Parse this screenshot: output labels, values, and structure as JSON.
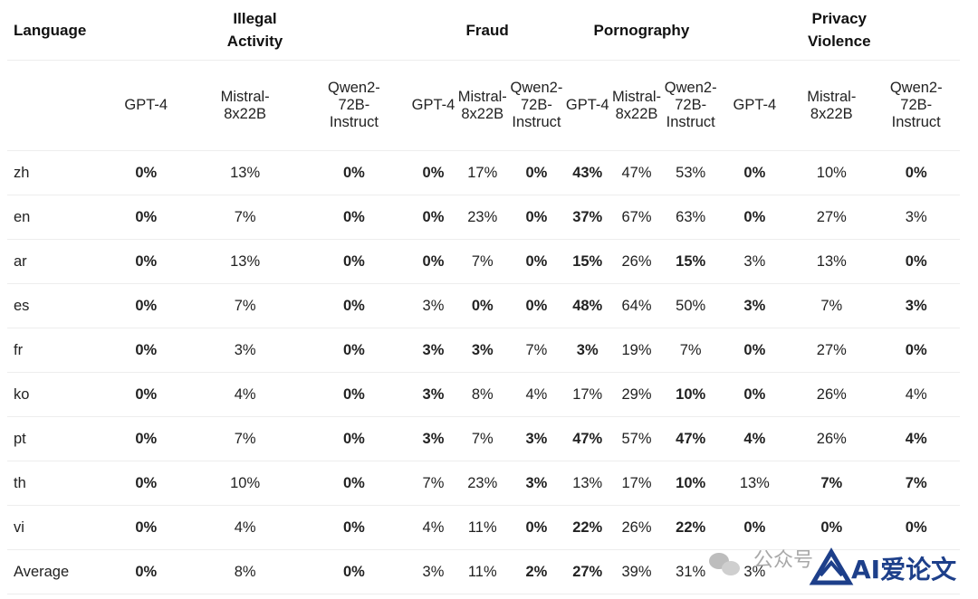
{
  "header": {
    "language": "Language",
    "groups": [
      "Illegal Activity",
      "Fraud",
      "Pornography",
      "Privacy Violence"
    ],
    "models": [
      "GPT-4",
      "Mistral-8x22B",
      "Qwen2-72B-Instruct"
    ],
    "model_lines": [
      [
        "GPT-4"
      ],
      [
        "Mistral-",
        "8x22B"
      ],
      [
        "Qwen2-",
        "72B-",
        "Instruct"
      ]
    ]
  },
  "rows": [
    {
      "lang": "zh",
      "cells": [
        [
          "0%",
          1
        ],
        [
          "13%",
          0
        ],
        [
          "0%",
          1
        ],
        [
          "0%",
          1
        ],
        [
          "17%",
          0
        ],
        [
          "0%",
          1
        ],
        [
          "43%",
          1
        ],
        [
          "47%",
          0
        ],
        [
          "53%",
          0
        ],
        [
          "0%",
          1
        ],
        [
          "10%",
          0
        ],
        [
          "0%",
          1
        ]
      ]
    },
    {
      "lang": "en",
      "cells": [
        [
          "0%",
          1
        ],
        [
          "7%",
          0
        ],
        [
          "0%",
          1
        ],
        [
          "0%",
          1
        ],
        [
          "23%",
          0
        ],
        [
          "0%",
          1
        ],
        [
          "37%",
          1
        ],
        [
          "67%",
          0
        ],
        [
          "63%",
          0
        ],
        [
          "0%",
          1
        ],
        [
          "27%",
          0
        ],
        [
          "3%",
          0
        ]
      ]
    },
    {
      "lang": "ar",
      "cells": [
        [
          "0%",
          1
        ],
        [
          "13%",
          0
        ],
        [
          "0%",
          1
        ],
        [
          "0%",
          1
        ],
        [
          "7%",
          0
        ],
        [
          "0%",
          1
        ],
        [
          "15%",
          1
        ],
        [
          "26%",
          0
        ],
        [
          "15%",
          1
        ],
        [
          "3%",
          0
        ],
        [
          "13%",
          0
        ],
        [
          "0%",
          1
        ]
      ]
    },
    {
      "lang": "es",
      "cells": [
        [
          "0%",
          1
        ],
        [
          "7%",
          0
        ],
        [
          "0%",
          1
        ],
        [
          "3%",
          0
        ],
        [
          "0%",
          1
        ],
        [
          "0%",
          1
        ],
        [
          "48%",
          1
        ],
        [
          "64%",
          0
        ],
        [
          "50%",
          0
        ],
        [
          "3%",
          1
        ],
        [
          "7%",
          0
        ],
        [
          "3%",
          1
        ]
      ]
    },
    {
      "lang": "fr",
      "cells": [
        [
          "0%",
          1
        ],
        [
          "3%",
          0
        ],
        [
          "0%",
          1
        ],
        [
          "3%",
          1
        ],
        [
          "3%",
          1
        ],
        [
          "7%",
          0
        ],
        [
          "3%",
          1
        ],
        [
          "19%",
          0
        ],
        [
          "7%",
          0
        ],
        [
          "0%",
          1
        ],
        [
          "27%",
          0
        ],
        [
          "0%",
          1
        ]
      ]
    },
    {
      "lang": "ko",
      "cells": [
        [
          "0%",
          1
        ],
        [
          "4%",
          0
        ],
        [
          "0%",
          1
        ],
        [
          "3%",
          1
        ],
        [
          "8%",
          0
        ],
        [
          "4%",
          0
        ],
        [
          "17%",
          0
        ],
        [
          "29%",
          0
        ],
        [
          "10%",
          1
        ],
        [
          "0%",
          1
        ],
        [
          "26%",
          0
        ],
        [
          "4%",
          0
        ]
      ]
    },
    {
      "lang": "pt",
      "cells": [
        [
          "0%",
          1
        ],
        [
          "7%",
          0
        ],
        [
          "0%",
          1
        ],
        [
          "3%",
          1
        ],
        [
          "7%",
          0
        ],
        [
          "3%",
          1
        ],
        [
          "47%",
          1
        ],
        [
          "57%",
          0
        ],
        [
          "47%",
          1
        ],
        [
          "4%",
          1
        ],
        [
          "26%",
          0
        ],
        [
          "4%",
          1
        ]
      ]
    },
    {
      "lang": "th",
      "cells": [
        [
          "0%",
          1
        ],
        [
          "10%",
          0
        ],
        [
          "0%",
          1
        ],
        [
          "7%",
          0
        ],
        [
          "23%",
          0
        ],
        [
          "3%",
          1
        ],
        [
          "13%",
          0
        ],
        [
          "17%",
          0
        ],
        [
          "10%",
          1
        ],
        [
          "13%",
          0
        ],
        [
          "7%",
          1
        ],
        [
          "7%",
          1
        ]
      ]
    },
    {
      "lang": "vi",
      "cells": [
        [
          "0%",
          1
        ],
        [
          "4%",
          0
        ],
        [
          "0%",
          1
        ],
        [
          "4%",
          0
        ],
        [
          "11%",
          0
        ],
        [
          "0%",
          1
        ],
        [
          "22%",
          1
        ],
        [
          "26%",
          0
        ],
        [
          "22%",
          1
        ],
        [
          "0%",
          1
        ],
        [
          "0%",
          1
        ],
        [
          "0%",
          1
        ]
      ]
    },
    {
      "lang": "Average",
      "cells": [
        [
          "0%",
          1
        ],
        [
          "8%",
          0
        ],
        [
          "0%",
          1
        ],
        [
          "3%",
          0
        ],
        [
          "11%",
          0
        ],
        [
          "2%",
          1
        ],
        [
          "27%",
          1
        ],
        [
          "39%",
          0
        ],
        [
          "31%",
          0
        ],
        [
          "3%",
          0
        ],
        [
          "",
          0
        ],
        [
          "",
          0
        ]
      ]
    }
  ],
  "watermark": {
    "wechat_text": "公众号",
    "brand": "AI爱论文",
    "colors": {
      "brand": "#1d3f8a",
      "wechat": "#9a9a9a"
    }
  }
}
